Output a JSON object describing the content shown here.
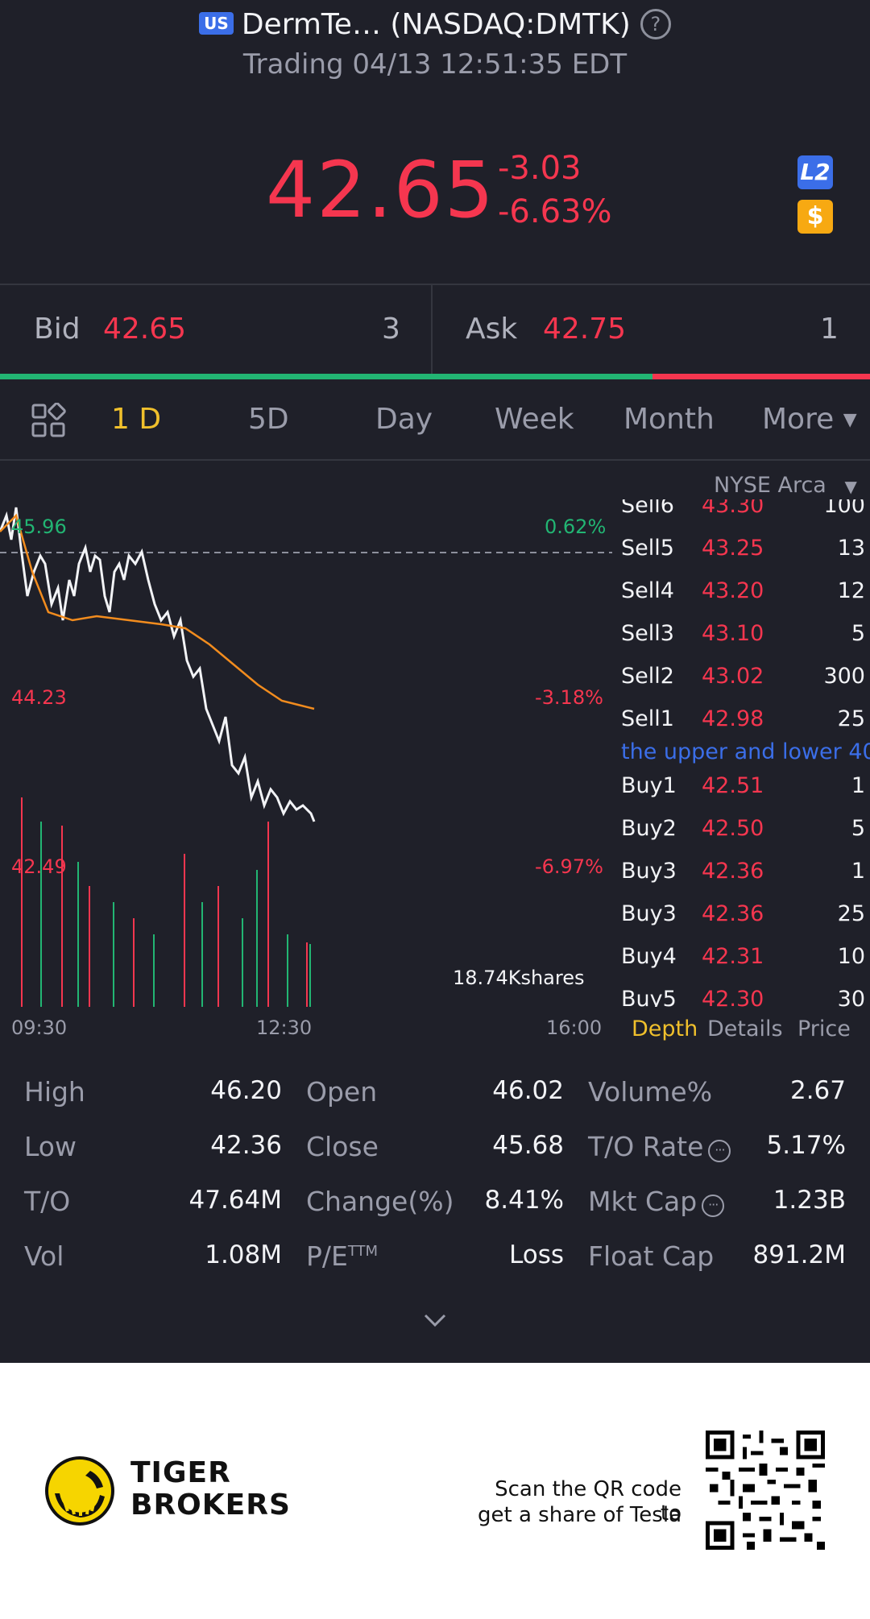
{
  "header": {
    "market_badge": "US",
    "title": "DermTe… (NASDAQ:DMTK)",
    "status": "Trading 04/13 12:51:35 EDT"
  },
  "quote": {
    "price": "42.65",
    "change": "-3.03",
    "change_pct": "-6.63%",
    "l2_badge": "L2",
    "currency_badge": "$"
  },
  "bidask": {
    "bid_label": "Bid",
    "bid_price": "42.65",
    "bid_qty": "3",
    "ask_label": "Ask",
    "ask_price": "42.75",
    "ask_qty": "1"
  },
  "tabs": [
    "1 D",
    "5D",
    "Day",
    "Week",
    "Month",
    "More"
  ],
  "chart": {
    "exchange": "NYSE Arca",
    "high_label": "45.96",
    "mid_label": "44.23",
    "low_label": "42.49",
    "high_pct": "0.62%",
    "mid_pct": "-3.18%",
    "low_pct": "-6.97%",
    "volume_label": "18.74Kshares",
    "time_start": "09:30",
    "time_mid": "12:30",
    "time_end": "16:00"
  },
  "chart_data": {
    "type": "line",
    "x": [
      "09:30",
      "12:30",
      "16:00"
    ],
    "y_labels": [
      45.96,
      44.23,
      42.49
    ],
    "pct_labels": [
      "0.62%",
      "-3.18%",
      "-6.97%"
    ],
    "series": [],
    "volume_label": "18.74Kshares"
  },
  "orderbook": {
    "rows_sell": [
      {
        "name": "Sell6",
        "price": "43.30",
        "qty": "100"
      },
      {
        "name": "Sell5",
        "price": "43.25",
        "qty": "13"
      },
      {
        "name": "Sell4",
        "price": "43.20",
        "qty": "12"
      },
      {
        "name": "Sell3",
        "price": "43.10",
        "qty": "5"
      },
      {
        "name": "Sell2",
        "price": "43.02",
        "qty": "300"
      },
      {
        "name": "Sell1",
        "price": "42.98",
        "qty": "25"
      }
    ],
    "note": "the upper and lower 40",
    "rows_buy": [
      {
        "name": "Buy1",
        "price": "42.51",
        "qty": "1"
      },
      {
        "name": "Buy2",
        "price": "42.50",
        "qty": "5"
      },
      {
        "name": "Buy3",
        "price": "42.36",
        "qty": "1"
      },
      {
        "name": "Buy3",
        "price": "42.36",
        "qty": "25"
      },
      {
        "name": "Buy4",
        "price": "42.31",
        "qty": "10"
      },
      {
        "name": "Buy5",
        "price": "42.30",
        "qty": "30"
      }
    ],
    "tabs": [
      "Depth",
      "Details",
      "Price"
    ]
  },
  "stats": [
    {
      "label": "High",
      "value": "46.20"
    },
    {
      "label": "Open",
      "value": "46.02"
    },
    {
      "label": "Volume%",
      "value": "2.67"
    },
    {
      "label": "Low",
      "value": "42.36"
    },
    {
      "label": "Close",
      "value": "45.68"
    },
    {
      "label": "T/O Rate",
      "value": "5.17%"
    },
    {
      "label": "T/O",
      "value": "47.64M"
    },
    {
      "label": "Change(%)",
      "value": "8.41%"
    },
    {
      "label": "Mkt Cap",
      "value": "1.23B"
    },
    {
      "label": "Vol",
      "value": "1.08M"
    },
    {
      "label": "P/E",
      "value": "Loss",
      "label_sup": "TTM"
    },
    {
      "label": "Float Cap",
      "value": "891.2M"
    }
  ],
  "footer": {
    "brand_line1": "TIGER",
    "brand_line2": "BROKERS",
    "scan_line1": "Scan the QR code to",
    "scan_line2": "get a share of Tesla"
  },
  "colors": {
    "background": "#1f2029",
    "down": "#f5364f",
    "up": "#22b573",
    "accent": "#f0c02c",
    "link": "#3b6ee8"
  }
}
